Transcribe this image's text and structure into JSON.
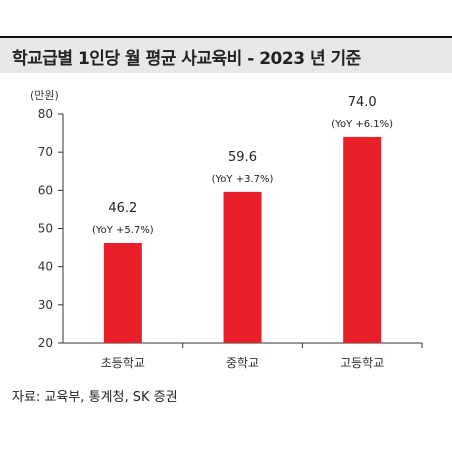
{
  "title": "학교급별 1인당 월 평균 사교육비 - 2023 년 기준",
  "source": "자료: 교육부, 통계청, SK 증권",
  "chart_data": {
    "type": "bar",
    "title": "학교급별 1인당 월 평균 사교육비 - 2023 년 기준",
    "unit_label": "(만원)",
    "categories": [
      "초등학교",
      "중학교",
      "고등학교"
    ],
    "values": [
      46.2,
      59.6,
      74.0
    ],
    "value_labels": [
      "46.2",
      "59.6",
      "74.0"
    ],
    "annotations": [
      "(YoY +5.7%)",
      "(YoY +3.7%)",
      "(YoY +6.1%)"
    ],
    "ylim": [
      20,
      80
    ],
    "yticks": [
      20,
      30,
      40,
      50,
      60,
      70,
      80
    ],
    "bar_color": "#e8202a",
    "grid": false,
    "xlabel": "",
    "ylabel": ""
  }
}
